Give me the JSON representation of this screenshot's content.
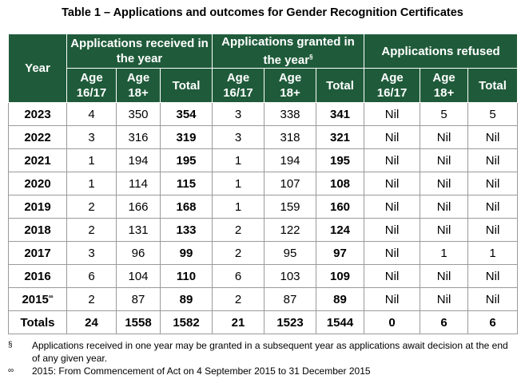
{
  "title": "Table 1 – Applications and outcomes for Gender Recognition Certificates",
  "table": {
    "year_header": "Year",
    "groups": [
      {
        "label": "Applications received in the year"
      },
      {
        "label": "Applications granted in the year",
        "marker": "§"
      },
      {
        "label": "Applications refused"
      }
    ],
    "subheaders": [
      "Age\n16/17",
      "Age\n18+",
      "Total",
      "Age\n16/17",
      "Age\n18+",
      "Total",
      "Age\n16/17",
      "Age\n18+",
      "Total"
    ],
    "rows": [
      {
        "year": "2023",
        "cells": [
          4,
          350,
          354,
          3,
          338,
          341,
          "Nil",
          5,
          5
        ]
      },
      {
        "year": "2022",
        "cells": [
          3,
          316,
          319,
          3,
          318,
          321,
          "Nil",
          "Nil",
          "Nil"
        ]
      },
      {
        "year": "2021",
        "cells": [
          1,
          194,
          195,
          1,
          194,
          195,
          "Nil",
          "Nil",
          "Nil"
        ]
      },
      {
        "year": "2020",
        "cells": [
          1,
          114,
          115,
          1,
          107,
          108,
          "Nil",
          "Nil",
          "Nil"
        ]
      },
      {
        "year": "2019",
        "cells": [
          2,
          166,
          168,
          1,
          159,
          160,
          "Nil",
          "Nil",
          "Nil"
        ]
      },
      {
        "year": "2018",
        "cells": [
          2,
          131,
          133,
          2,
          122,
          124,
          "Nil",
          "Nil",
          "Nil"
        ]
      },
      {
        "year": "2017",
        "cells": [
          3,
          96,
          99,
          2,
          95,
          97,
          "Nil",
          1,
          1
        ]
      },
      {
        "year": "2016",
        "cells": [
          6,
          104,
          110,
          6,
          103,
          109,
          "Nil",
          "Nil",
          "Nil"
        ]
      },
      {
        "year": "2015",
        "marker": "∞",
        "cells": [
          2,
          87,
          89,
          2,
          87,
          89,
          "Nil",
          "Nil",
          "Nil"
        ]
      }
    ],
    "totals": {
      "label": "Totals",
      "cells": [
        24,
        1558,
        1582,
        21,
        1523,
        1544,
        0,
        6,
        6
      ]
    }
  },
  "footnotes": [
    {
      "marker": "§",
      "text": "Applications received in one year may be granted in a subsequent year as applications await decision at the end of any given year."
    },
    {
      "marker": "∞",
      "text": "2015: From Commencement of Act on 4 September 2015 to 31 December 2015"
    }
  ]
}
